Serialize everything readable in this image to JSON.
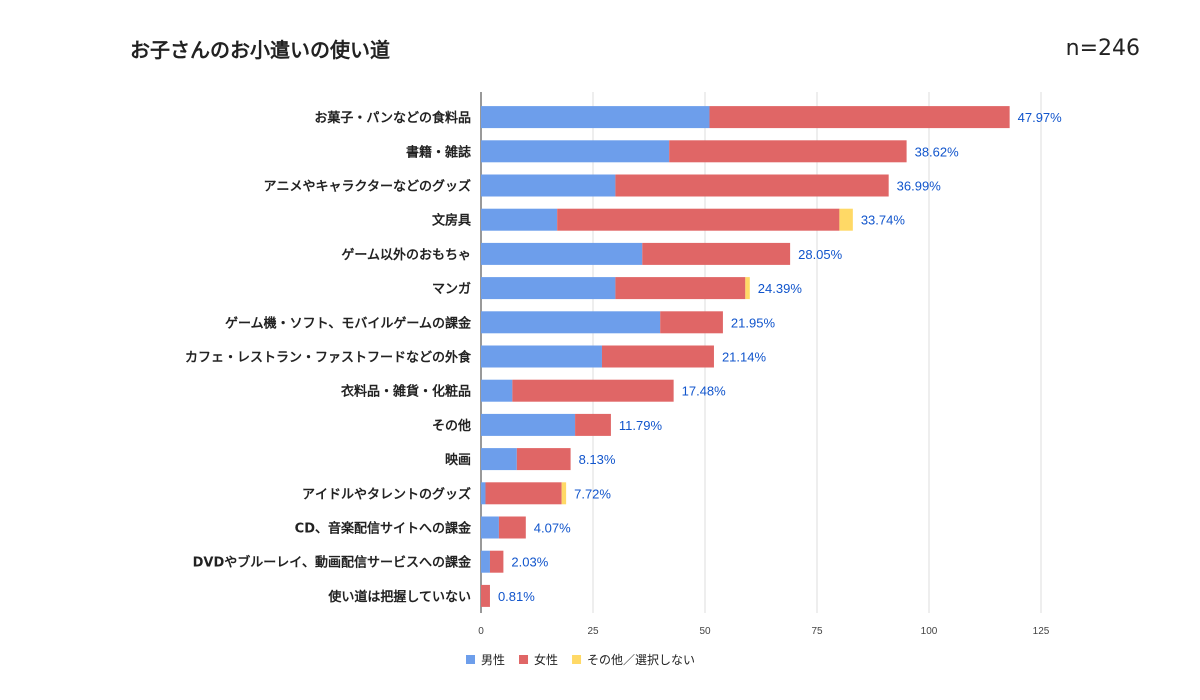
{
  "title": "お子さんのお小遣いの使い道",
  "sample_size": "n=246",
  "chart_data": {
    "type": "bar",
    "orientation": "horizontal",
    "stacked": true,
    "title": "お子さんのお小遣いの使い道",
    "xlim": [
      0,
      125
    ],
    "x_ticks": [
      0,
      25,
      50,
      75,
      100,
      125
    ],
    "grid": true,
    "legend_position": "bottom",
    "categories": [
      "お菓子・パンなどの食料品",
      "書籍・雑誌",
      "アニメやキャラクターなどのグッズ",
      "文房具",
      "ゲーム以外のおもちゃ",
      "マンガ",
      "ゲーム機・ソフト、モバイルゲームの課金",
      "カフェ・レストラン・ファストフードなどの外食",
      "衣料品・雑貨・化粧品",
      "その他",
      "映画",
      "アイドルやタレントのグッズ",
      "CD、音楽配信サイトへの課金",
      "DVDやブルーレイ、動画配信サービスへの課金",
      "使い道は把握していない"
    ],
    "series": [
      {
        "name": "男性",
        "color": "#6d9eeb",
        "values": [
          51,
          42,
          30,
          17,
          36,
          30,
          40,
          27,
          7,
          21,
          8,
          1,
          4,
          2,
          0
        ]
      },
      {
        "name": "女性",
        "color": "#e06666",
        "values": [
          67,
          53,
          61,
          63,
          33,
          29,
          14,
          25,
          36,
          8,
          12,
          17,
          6,
          3,
          2
        ]
      },
      {
        "name": "その他／選択しない",
        "color": "#ffd966",
        "values": [
          0,
          0,
          0,
          3,
          0,
          1,
          0,
          0,
          0,
          0,
          0,
          1,
          0,
          0,
          0
        ]
      }
    ],
    "data_labels": [
      "47.97%",
      "38.62%",
      "36.99%",
      "33.74%",
      "28.05%",
      "24.39%",
      "21.95%",
      "21.14%",
      "17.48%",
      "11.79%",
      "8.13%",
      "7.72%",
      "4.07%",
      "2.03%",
      "0.81%"
    ]
  }
}
